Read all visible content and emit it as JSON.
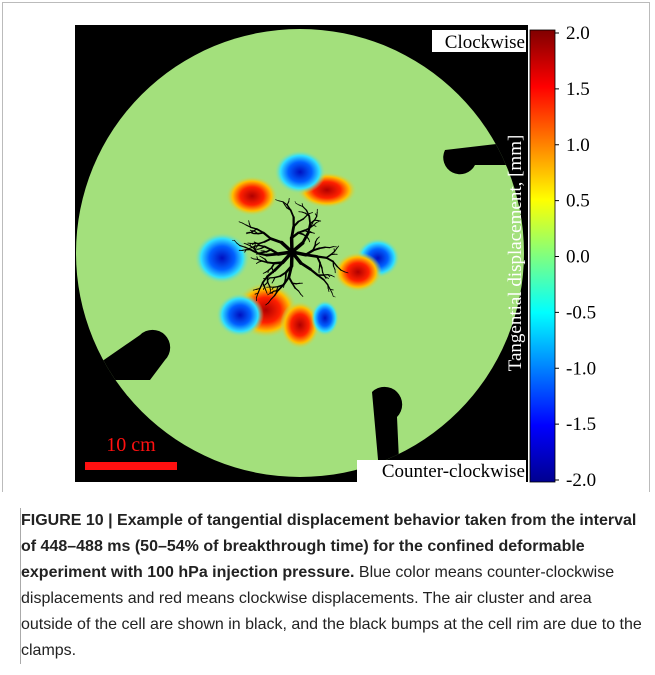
{
  "figure": {
    "top_label": "Clockwise",
    "bottom_label": "Counter-clockwise",
    "scale_bar": "10 cm",
    "colorbar": {
      "label": "Tangential displacement, [mm]",
      "lim": [
        -2,
        2
      ],
      "ticks": [
        {
          "value": 2,
          "label": "2.0"
        },
        {
          "value": 1.5,
          "label": "1.5"
        },
        {
          "value": 1,
          "label": "1.0"
        },
        {
          "value": 0.5,
          "label": "0.5"
        },
        {
          "value": 0,
          "label": "0.0"
        },
        {
          "value": -0.5,
          "label": "-0.5"
        },
        {
          "value": -1,
          "label": "-1.0"
        },
        {
          "value": -1.5,
          "label": "-1.5"
        },
        {
          "value": -2,
          "label": "-2.0"
        }
      ]
    }
  },
  "caption": {
    "bold": "FIGURE 10 | Example of tangential displacement behavior taken from the interval of 448–488 ms (50–54% of breakthrough time) for the confined deformable experiment with 100 hPa injection pressure.",
    "text": "Blue color means counter-clockwise displacements and red means clockwise displacements. The air cluster and area outside of the cell are shown in black, and the black bumps at the cell rim are due to the clamps."
  }
}
